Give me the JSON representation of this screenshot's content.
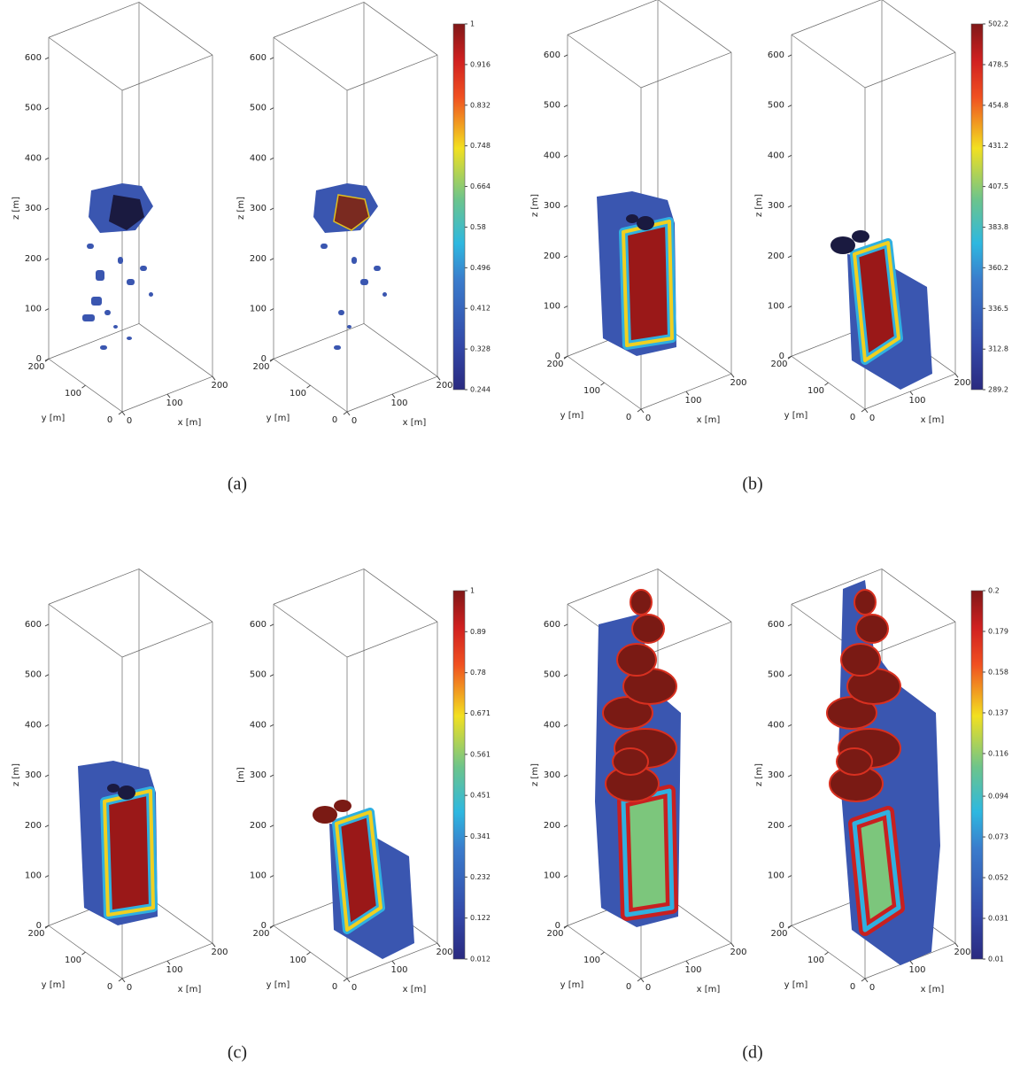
{
  "axes": {
    "x_label": "x [m]",
    "y_label": "y [m]",
    "xlim": [
      0,
      200
    ],
    "ylim": [
      0,
      200
    ],
    "zlim": [
      0,
      640
    ],
    "xticks": [
      0,
      100,
      200
    ],
    "yticks": [
      0,
      100,
      200
    ],
    "zticks": [
      0,
      100,
      200,
      300,
      400,
      500,
      600
    ]
  },
  "panels": [
    {
      "label": "(a)",
      "plots": [
        {
          "z_label": "z [m]"
        },
        {
          "z_label": "z [m]"
        }
      ],
      "colorbar": {
        "ticks": [
          0.244,
          0.328,
          0.412,
          0.496,
          0.58,
          0.664,
          0.748,
          0.832,
          0.916,
          1
        ]
      }
    },
    {
      "label": "(b)",
      "plots": [
        {
          "z_label": "z [m]"
        },
        {
          "z_label": "z [m]"
        }
      ],
      "colorbar": {
        "ticks": [
          289.2,
          312.8,
          336.5,
          360.2,
          383.8,
          407.5,
          431.2,
          454.8,
          478.5,
          502.2
        ]
      }
    },
    {
      "label": "(c)",
      "plots": [
        {
          "z_label": "z [m]"
        },
        {
          "z_label": "[m]"
        }
      ],
      "colorbar": {
        "ticks": [
          0.012,
          0.122,
          0.232,
          0.341,
          0.451,
          0.561,
          0.671,
          0.78,
          0.89,
          1
        ]
      }
    },
    {
      "label": "(d)",
      "plots": [
        {
          "z_label": "z [m]"
        },
        {
          "z_label": "z [m]"
        }
      ],
      "colorbar": {
        "ticks": [
          0.01,
          0.031,
          0.052,
          0.073,
          0.094,
          0.116,
          0.137,
          0.158,
          0.179,
          0.2
        ]
      }
    }
  ]
}
